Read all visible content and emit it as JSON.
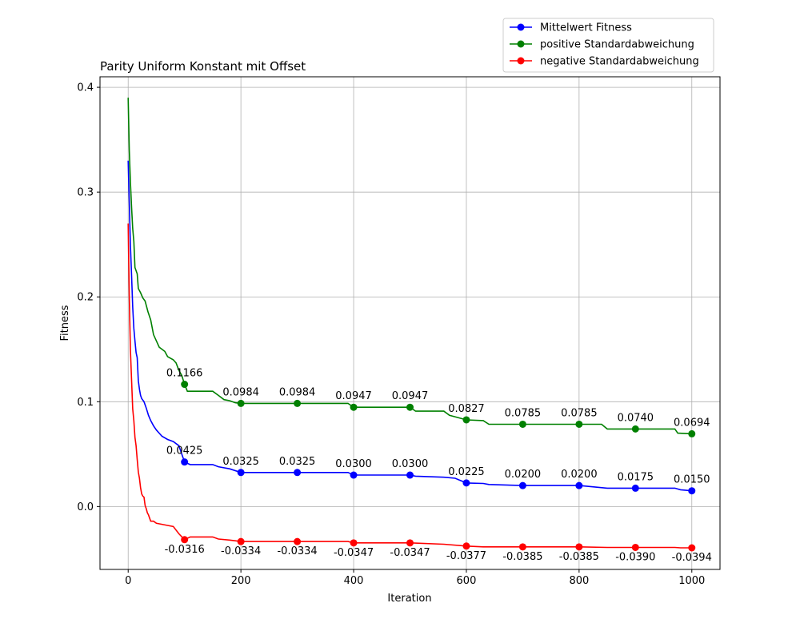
{
  "chart_data": {
    "type": "line",
    "title": "Parity Uniform Konstant mit Offset",
    "xlabel": "Iteration",
    "ylabel": "Fitness",
    "xlim": [
      -50,
      1050
    ],
    "ylim": [
      -0.06,
      0.41
    ],
    "xticks": [
      0,
      200,
      400,
      600,
      800,
      1000
    ],
    "xtick_labels": [
      "0",
      "200",
      "400",
      "600",
      "800",
      "1000"
    ],
    "yticks": [
      0.0,
      0.1,
      0.2,
      0.3,
      0.4
    ],
    "ytick_labels": [
      "0.0",
      "0.1",
      "0.2",
      "0.3",
      "0.4"
    ],
    "grid": true,
    "legend_position": "above top-right",
    "series": [
      {
        "name": "Mittelwert Fitness",
        "color": "#0000ff",
        "line": [
          [
            0,
            0.33
          ],
          [
            2,
            0.29
          ],
          [
            4,
            0.25
          ],
          [
            6,
            0.22
          ],
          [
            8,
            0.19
          ],
          [
            10,
            0.17
          ],
          [
            12,
            0.158
          ],
          [
            14,
            0.147
          ],
          [
            16,
            0.142
          ],
          [
            18,
            0.12
          ],
          [
            20,
            0.112
          ],
          [
            22,
            0.106
          ],
          [
            24,
            0.103
          ],
          [
            28,
            0.1
          ],
          [
            32,
            0.094
          ],
          [
            36,
            0.087
          ],
          [
            40,
            0.082
          ],
          [
            45,
            0.077
          ],
          [
            50,
            0.073
          ],
          [
            55,
            0.07
          ],
          [
            60,
            0.067
          ],
          [
            70,
            0.064
          ],
          [
            80,
            0.062
          ],
          [
            90,
            0.058
          ],
          [
            95,
            0.05
          ],
          [
            100,
            0.0425
          ],
          [
            110,
            0.04
          ],
          [
            150,
            0.04
          ],
          [
            160,
            0.038
          ],
          [
            180,
            0.036
          ],
          [
            200,
            0.0325
          ],
          [
            390,
            0.0325
          ],
          [
            400,
            0.03
          ],
          [
            500,
            0.03
          ],
          [
            510,
            0.029
          ],
          [
            560,
            0.028
          ],
          [
            580,
            0.027
          ],
          [
            600,
            0.0225
          ],
          [
            630,
            0.022
          ],
          [
            640,
            0.021
          ],
          [
            700,
            0.02
          ],
          [
            800,
            0.02
          ],
          [
            850,
            0.0175
          ],
          [
            970,
            0.0175
          ],
          [
            980,
            0.016
          ],
          [
            1000,
            0.015
          ]
        ],
        "markers": [
          [
            100,
            0.0425
          ],
          [
            200,
            0.0325
          ],
          [
            300,
            0.0325
          ],
          [
            400,
            0.03
          ],
          [
            500,
            0.03
          ],
          [
            600,
            0.0225
          ],
          [
            700,
            0.02
          ],
          [
            800,
            0.02
          ],
          [
            900,
            0.0175
          ],
          [
            1000,
            0.015
          ]
        ],
        "labels": [
          "0.0425",
          "0.0325",
          "0.0325",
          "0.0300",
          "0.0300",
          "0.0225",
          "0.0200",
          "0.0200",
          "0.0175",
          "0.0150"
        ],
        "label_pos": "above"
      },
      {
        "name": "positive Standardabweichung",
        "color": "#008000",
        "line": [
          [
            0,
            0.39
          ],
          [
            2,
            0.34
          ],
          [
            4,
            0.31
          ],
          [
            6,
            0.285
          ],
          [
            8,
            0.265
          ],
          [
            10,
            0.253
          ],
          [
            12,
            0.228
          ],
          [
            16,
            0.222
          ],
          [
            18,
            0.208
          ],
          [
            22,
            0.204
          ],
          [
            26,
            0.199
          ],
          [
            30,
            0.196
          ],
          [
            35,
            0.186
          ],
          [
            40,
            0.178
          ],
          [
            45,
            0.164
          ],
          [
            50,
            0.158
          ],
          [
            55,
            0.152
          ],
          [
            65,
            0.148
          ],
          [
            70,
            0.143
          ],
          [
            80,
            0.14
          ],
          [
            85,
            0.137
          ],
          [
            90,
            0.13
          ],
          [
            95,
            0.125
          ],
          [
            100,
            0.1166
          ],
          [
            105,
            0.11
          ],
          [
            150,
            0.11
          ],
          [
            160,
            0.106
          ],
          [
            170,
            0.102
          ],
          [
            180,
            0.101
          ],
          [
            190,
            0.099
          ],
          [
            200,
            0.0984
          ],
          [
            390,
            0.0984
          ],
          [
            400,
            0.0947
          ],
          [
            500,
            0.0947
          ],
          [
            510,
            0.091
          ],
          [
            560,
            0.091
          ],
          [
            570,
            0.087
          ],
          [
            600,
            0.0827
          ],
          [
            630,
            0.082
          ],
          [
            640,
            0.0785
          ],
          [
            800,
            0.0785
          ],
          [
            840,
            0.0785
          ],
          [
            850,
            0.074
          ],
          [
            970,
            0.074
          ],
          [
            975,
            0.07
          ],
          [
            1000,
            0.0694
          ]
        ],
        "markers": [
          [
            100,
            0.1166
          ],
          [
            200,
            0.0984
          ],
          [
            300,
            0.0984
          ],
          [
            400,
            0.0947
          ],
          [
            500,
            0.0947
          ],
          [
            600,
            0.0827
          ],
          [
            700,
            0.0785
          ],
          [
            800,
            0.0785
          ],
          [
            900,
            0.074
          ],
          [
            1000,
            0.0694
          ]
        ],
        "labels": [
          "0.1166",
          "0.0984",
          "0.0984",
          "0.0947",
          "0.0947",
          "0.0827",
          "0.0785",
          "0.0785",
          "0.0740",
          "0.0694"
        ],
        "label_pos": "above"
      },
      {
        "name": "negative Standardabweichung",
        "color": "#ff0000",
        "line": [
          [
            0,
            0.27
          ],
          [
            2,
            0.2
          ],
          [
            4,
            0.15
          ],
          [
            6,
            0.12
          ],
          [
            8,
            0.093
          ],
          [
            10,
            0.082
          ],
          [
            12,
            0.066
          ],
          [
            14,
            0.058
          ],
          [
            16,
            0.045
          ],
          [
            18,
            0.033
          ],
          [
            20,
            0.027
          ],
          [
            22,
            0.018
          ],
          [
            24,
            0.012
          ],
          [
            26,
            0.01
          ],
          [
            28,
            0.009
          ],
          [
            30,
            0.001
          ],
          [
            32,
            -0.002
          ],
          [
            34,
            -0.006
          ],
          [
            36,
            -0.008
          ],
          [
            38,
            -0.011
          ],
          [
            40,
            -0.014
          ],
          [
            45,
            -0.014
          ],
          [
            50,
            -0.016
          ],
          [
            60,
            -0.017
          ],
          [
            70,
            -0.018
          ],
          [
            80,
            -0.019
          ],
          [
            90,
            -0.026
          ],
          [
            100,
            -0.0316
          ],
          [
            110,
            -0.029
          ],
          [
            150,
            -0.029
          ],
          [
            160,
            -0.031
          ],
          [
            180,
            -0.032
          ],
          [
            200,
            -0.0334
          ],
          [
            390,
            -0.0334
          ],
          [
            400,
            -0.0347
          ],
          [
            500,
            -0.0347
          ],
          [
            560,
            -0.036
          ],
          [
            600,
            -0.0377
          ],
          [
            630,
            -0.0385
          ],
          [
            800,
            -0.0385
          ],
          [
            850,
            -0.039
          ],
          [
            970,
            -0.039
          ],
          [
            980,
            -0.0394
          ],
          [
            1000,
            -0.0394
          ]
        ],
        "markers": [
          [
            100,
            -0.0316
          ],
          [
            200,
            -0.0334
          ],
          [
            300,
            -0.0334
          ],
          [
            400,
            -0.0347
          ],
          [
            500,
            -0.0347
          ],
          [
            600,
            -0.0377
          ],
          [
            700,
            -0.0385
          ],
          [
            800,
            -0.0385
          ],
          [
            900,
            -0.039
          ],
          [
            1000,
            -0.0394
          ]
        ],
        "labels": [
          "-0.0316",
          "-0.0334",
          "-0.0334",
          "-0.0347",
          "-0.0347",
          "-0.0377",
          "-0.0385",
          "-0.0385",
          "-0.0390",
          "-0.0394"
        ],
        "label_pos": "below"
      }
    ]
  }
}
